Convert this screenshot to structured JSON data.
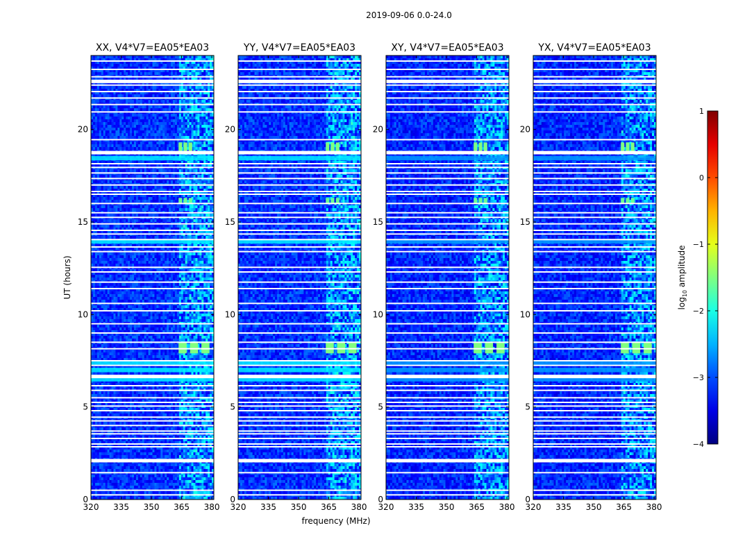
{
  "chart_data": {
    "type": "heatmap",
    "suptitle": "2019-09-06 0.0-24.0",
    "xlabel": "frequency (MHz)",
    "ylabel": "UT (hours)",
    "xlim": [
      320,
      381
    ],
    "ylim": [
      0,
      24
    ],
    "xticks": [
      "320",
      "335",
      "350",
      "365",
      "380"
    ],
    "xtick_values": [
      320,
      335,
      350,
      365,
      380
    ],
    "yticks": [
      "0",
      "5",
      "10",
      "15",
      "20"
    ],
    "ytick_values": [
      0,
      5,
      10,
      15,
      20
    ],
    "panels": [
      {
        "title": "XX, V4*V7=EA05*EA03",
        "pol": "XX"
      },
      {
        "title": "YY, V4*V7=EA05*EA03",
        "pol": "YY"
      },
      {
        "title": "XY, V4*V7=EA05*EA03",
        "pol": "XY"
      },
      {
        "title": "YX, V4*V7=EA05*EA03",
        "pol": "YX"
      }
    ],
    "colorbar": {
      "label": "log10 amplitude",
      "label_prefix": "log",
      "label_sub": "10",
      "label_suffix": " amplitude",
      "range": [
        -4,
        1
      ],
      "ticks": [
        "1",
        "0",
        "−1",
        "−2",
        "−3",
        "−4"
      ],
      "tick_values": [
        1,
        0,
        -1,
        -2,
        -3,
        -4
      ],
      "colormap": "jet"
    },
    "flagged_utc_hours": [
      0.25,
      0.5,
      1.45,
      2.1,
      2.85,
      3.0,
      3.3,
      3.55,
      3.7,
      4.0,
      4.25,
      4.45,
      4.8,
      5.05,
      5.25,
      5.5,
      5.9,
      6.15,
      6.65,
      7.25,
      7.5,
      8.15,
      8.5,
      9.0,
      9.5,
      10.2,
      10.6,
      11.4,
      11.75,
      12.3,
      12.55,
      13.4,
      13.65,
      14.05,
      14.35,
      14.55,
      14.9,
      15.25,
      15.5,
      16.0,
      16.5,
      16.65,
      17.0,
      17.35,
      17.65,
      17.95,
      18.15,
      18.75,
      19.45,
      20.95,
      21.35,
      21.7,
      22.05,
      22.4,
      22.6,
      22.85,
      23.25,
      23.7
    ],
    "bright_utc_hours": [
      6.5,
      7.0,
      7.4,
      13.95,
      18.45
    ],
    "rfi_bursts": [
      {
        "f_start": 363.5,
        "f_end": 371,
        "t_start": 18.8,
        "t_end": 19.3,
        "log_amp": -1.5
      },
      {
        "f_start": 363.5,
        "f_end": 380.5,
        "t_start": 7.9,
        "t_end": 8.5,
        "log_amp": -1.5
      },
      {
        "f_start": 363.5,
        "f_end": 371,
        "t_start": 16.0,
        "t_end": 16.3,
        "log_amp": -1.6
      }
    ]
  }
}
